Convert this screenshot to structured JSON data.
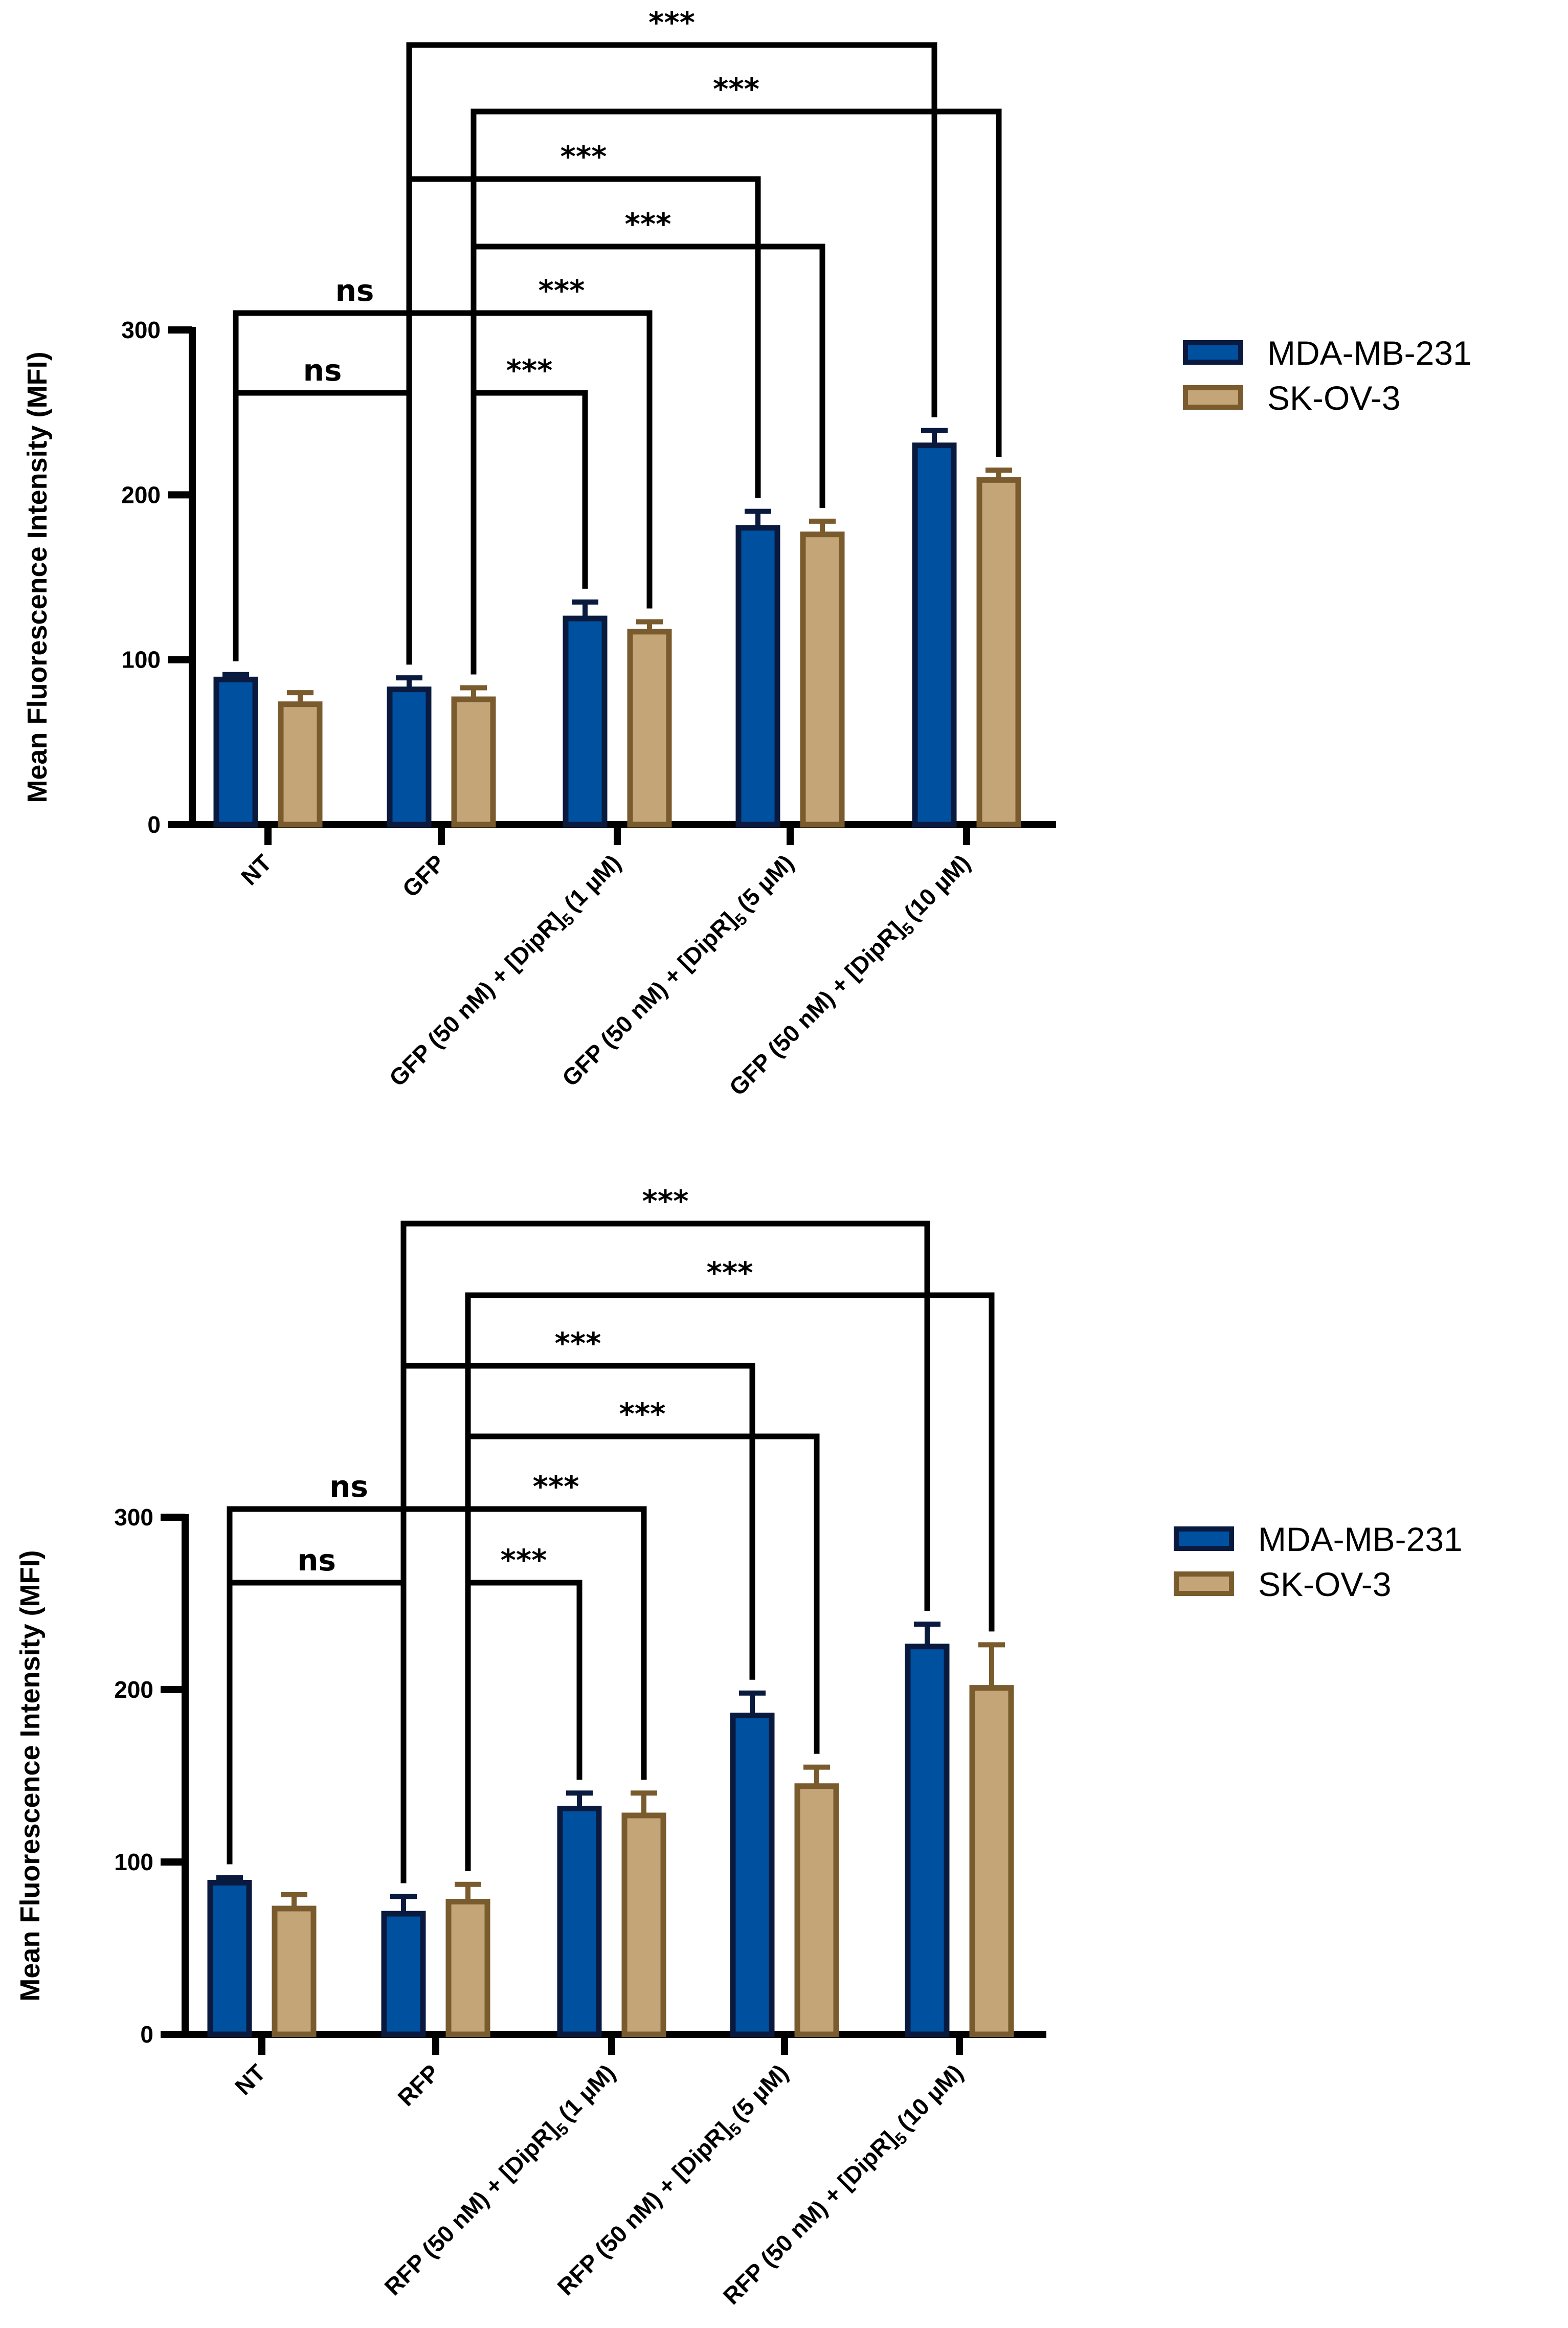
{
  "chart_data": [
    {
      "type": "bar",
      "title": "",
      "xlabel": "",
      "ylabel": "Mean Fluorescence Intensity (MFI)",
      "ylim": [
        0,
        300
      ],
      "yticks": [
        "0",
        "100",
        "200",
        "300"
      ],
      "categories": [
        {
          "main": "NT"
        },
        {
          "main": "GFP"
        },
        {
          "main": "GFP (50 nM) + [DipR]",
          "sub": "5",
          "tail": "(1 µM)"
        },
        {
          "main": "GFP (50 nM) + [DipR]",
          "sub": "5",
          "tail": "(5 µM)"
        },
        {
          "main": "GFP (50 nM) + [DipR]",
          "sub": "5",
          "tail": "(10 µM)"
        }
      ],
      "series": [
        {
          "name": "MDA-MB-231",
          "fill": "#0050a0",
          "edge": "#0a1a3f",
          "values": [
            88,
            82,
            125,
            180,
            230
          ],
          "errors": [
            3,
            7,
            10,
            10,
            9
          ]
        },
        {
          "name": "SK-OV-3",
          "fill": "#c4a578",
          "edge": "#7a5b2e",
          "values": [
            73,
            76,
            117,
            176,
            209
          ],
          "errors": [
            7,
            7,
            6,
            8,
            6
          ]
        }
      ],
      "comparisons": [
        {
          "label": "***",
          "from": [
            1,
            0
          ],
          "to": [
            4,
            0
          ]
        },
        {
          "label": "***",
          "from": [
            1,
            1
          ],
          "to": [
            4,
            1
          ]
        },
        {
          "label": "***",
          "from": [
            1,
            0
          ],
          "to": [
            3,
            0
          ]
        },
        {
          "label": "***",
          "from": [
            1,
            1
          ],
          "to": [
            3,
            1
          ]
        },
        {
          "label": "ns",
          "from": [
            0,
            0
          ],
          "to": [
            1,
            1
          ]
        },
        {
          "label": "***",
          "from": [
            1,
            1
          ],
          "to": [
            2,
            1
          ]
        },
        {
          "label": "ns",
          "from": [
            0,
            0
          ],
          "to": [
            1,
            0
          ]
        },
        {
          "label": "***",
          "from": [
            1,
            1
          ],
          "to": [
            2,
            0
          ]
        }
      ],
      "legend": [
        "MDA-MB-231",
        "SK-OV-3"
      ]
    },
    {
      "type": "bar",
      "title": "",
      "xlabel": "",
      "ylabel": "Mean Fluorescence Intensity (MFI)",
      "ylim": [
        0,
        300
      ],
      "yticks": [
        "0",
        "100",
        "200",
        "300"
      ],
      "categories": [
        {
          "main": "NT"
        },
        {
          "main": "RFP"
        },
        {
          "main": "RFP (50 nM) + [DipR]",
          "sub": "5",
          "tail": "(1 µM)"
        },
        {
          "main": "RFP (50 nM) + [DipR]",
          "sub": "5",
          "tail": "(5 µM)"
        },
        {
          "main": "RFP (50 nM) + [DipR]",
          "sub": "5",
          "tail": "(10 µM)"
        }
      ],
      "series": [
        {
          "name": "MDA-MB-231",
          "fill": "#0050a0",
          "edge": "#0a1a3f",
          "values": [
            88,
            70,
            131,
            185,
            225
          ],
          "errors": [
            3,
            10,
            9,
            13,
            13
          ]
        },
        {
          "name": "SK-OV-3",
          "fill": "#c4a578",
          "edge": "#7a5b2e",
          "values": [
            73,
            77,
            127,
            144,
            201
          ],
          "errors": [
            8,
            10,
            13,
            11,
            25
          ]
        }
      ],
      "comparisons": [
        {
          "label": "***",
          "from": [
            1,
            0
          ],
          "to": [
            4,
            0
          ]
        },
        {
          "label": "***",
          "from": [
            1,
            1
          ],
          "to": [
            4,
            1
          ]
        },
        {
          "label": "***",
          "from": [
            1,
            0
          ],
          "to": [
            3,
            0
          ]
        },
        {
          "label": "***",
          "from": [
            1,
            1
          ],
          "to": [
            3,
            1
          ]
        },
        {
          "label": "ns",
          "from": [
            0,
            0
          ],
          "to": [
            1,
            1
          ]
        },
        {
          "label": "***",
          "from": [
            1,
            1
          ],
          "to": [
            2,
            1
          ]
        },
        {
          "label": "ns",
          "from": [
            0,
            0
          ],
          "to": [
            1,
            0
          ]
        },
        {
          "label": "***",
          "from": [
            1,
            1
          ],
          "to": [
            2,
            0
          ]
        }
      ],
      "legend": [
        "MDA-MB-231",
        "SK-OV-3"
      ]
    }
  ]
}
